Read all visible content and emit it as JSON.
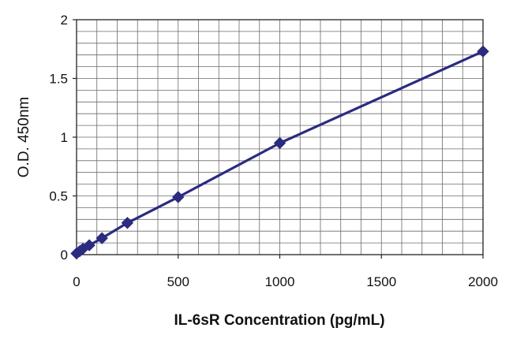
{
  "chart_data": {
    "type": "line",
    "title": "",
    "xlabel": "IL-6sR Concentration (pg/mL)",
    "ylabel": "O.D. 450nm",
    "xlim": [
      0,
      2000
    ],
    "ylim": [
      0,
      2
    ],
    "x_ticks": [
      0,
      500,
      1000,
      1500,
      2000
    ],
    "y_ticks": [
      0,
      0.5,
      1,
      1.5,
      2
    ],
    "x_tick_labels": [
      "0",
      "500",
      "1000",
      "1500",
      "2000"
    ],
    "y_tick_labels": [
      "0",
      "0.5",
      "1",
      "1.5",
      "2"
    ],
    "grid": true,
    "legend": "none",
    "colors": {
      "series": "#2b2b80",
      "grid": "#6b6b6b",
      "axis": "#222222"
    },
    "series": [
      {
        "marker": "diamond",
        "points": [
          [
            0,
            0.01
          ],
          [
            15.6,
            0.03
          ],
          [
            31.25,
            0.05
          ],
          [
            62.5,
            0.08
          ],
          [
            125,
            0.14
          ],
          [
            250,
            0.27
          ],
          [
            500,
            0.49
          ],
          [
            1000,
            0.95
          ],
          [
            2000,
            1.73
          ]
        ]
      }
    ]
  }
}
